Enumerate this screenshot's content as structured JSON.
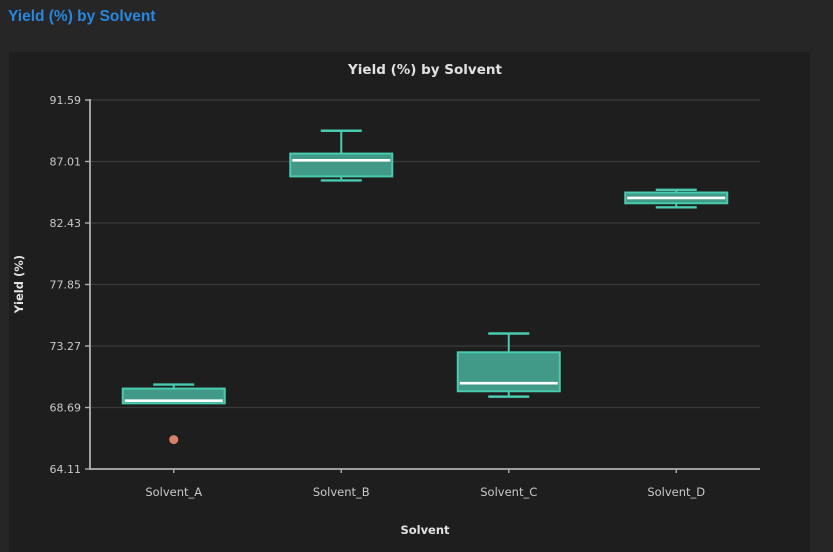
{
  "page": {
    "title": "Yield (%) by Solvent",
    "title_color": "#2787e0",
    "background": "#262626",
    "card_background": "#1e1e1e"
  },
  "chart_data": {
    "type": "box",
    "title": "Yield (%) by Solvent",
    "xlabel": "Solvent",
    "ylabel": "Yield (%)",
    "categories": [
      "Solvent_A",
      "Solvent_B",
      "Solvent_C",
      "Solvent_D"
    ],
    "ylim": [
      64.11,
      91.59
    ],
    "y_ticks": [
      91.59,
      87.01,
      82.43,
      77.85,
      73.27,
      68.69,
      64.11
    ],
    "grid": true,
    "legend": false,
    "series": [
      {
        "category": "Solvent_A",
        "whisker_low": 69.0,
        "q1": 69.0,
        "median": 69.2,
        "q3": 70.1,
        "whisker_high": 70.4,
        "outliers": [
          66.3
        ]
      },
      {
        "category": "Solvent_B",
        "whisker_low": 85.6,
        "q1": 85.9,
        "median": 87.1,
        "q3": 87.6,
        "whisker_high": 89.3,
        "outliers": []
      },
      {
        "category": "Solvent_C",
        "whisker_low": 69.5,
        "q1": 69.9,
        "median": 70.5,
        "q3": 72.8,
        "whisker_high": 74.2,
        "outliers": []
      },
      {
        "category": "Solvent_D",
        "whisker_low": 83.6,
        "q1": 83.9,
        "median": 84.3,
        "q3": 84.7,
        "whisker_high": 84.9,
        "outliers": []
      }
    ],
    "colors": {
      "box_fill": "#409a87",
      "box_edge": "#48cbae",
      "median": "#ffffff",
      "outlier": "#d9806b",
      "axis": "#b0b0b0",
      "grid": "#3a3a3a",
      "tick_label": "#c9c9c9",
      "title": "#e2e2e2"
    }
  }
}
